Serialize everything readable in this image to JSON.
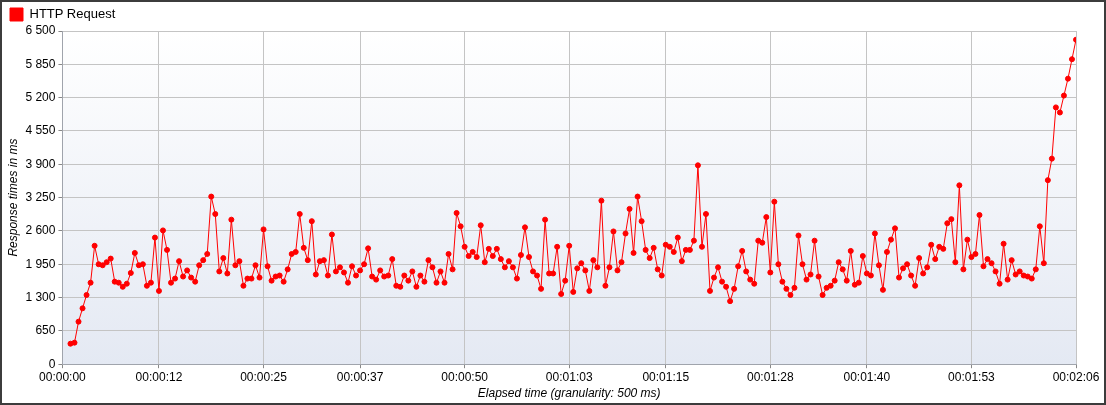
{
  "chart_data": {
    "type": "line",
    "xlabel": "Elapsed time (granularity: 500 ms)",
    "ylabel": "Response times in ms",
    "xlim": [
      0,
      126
    ],
    "xticks": [
      {
        "value": 0,
        "label": "00:00:00"
      },
      {
        "value": 12,
        "label": "00:00:12"
      },
      {
        "value": 25,
        "label": "00:00:25"
      },
      {
        "value": 37,
        "label": "00:00:37"
      },
      {
        "value": 50,
        "label": "00:00:50"
      },
      {
        "value": 63,
        "label": "00:01:03"
      },
      {
        "value": 75,
        "label": "00:01:15"
      },
      {
        "value": 88,
        "label": "00:01:28"
      },
      {
        "value": 100,
        "label": "00:01:40"
      },
      {
        "value": 113,
        "label": "00:01:53"
      },
      {
        "value": 126,
        "label": "00:02:06"
      }
    ],
    "ylim": [
      0,
      6500
    ],
    "yticks": [
      0,
      650,
      {
        "value": 1300,
        "label": "1 300"
      },
      {
        "value": 1950,
        "label": "1 950"
      },
      {
        "value": 2600,
        "label": "2 600"
      },
      {
        "value": 3250,
        "label": "3 250"
      },
      {
        "value": 3900,
        "label": "3 900"
      },
      {
        "value": 4550,
        "label": "4 550"
      },
      {
        "value": 5200,
        "label": "5 200"
      },
      {
        "value": 5850,
        "label": "5 850"
      },
      {
        "value": 6500,
        "label": "6 500"
      }
    ],
    "grid": true,
    "legend": "top left",
    "marker": "circle",
    "line_style": "solid",
    "x": [
      1,
      1.5,
      2,
      2.5,
      3,
      3.5,
      4,
      4.5,
      5,
      5.5,
      6,
      6.5,
      7,
      7.5,
      8,
      8.5,
      9,
      9.5,
      10,
      10.5,
      11,
      11.5,
      12,
      12.5,
      13,
      13.5,
      14,
      14.5,
      15,
      15.5,
      16,
      16.5,
      17,
      17.5,
      18,
      18.5,
      19,
      19.5,
      20,
      20.5,
      21,
      21.5,
      22,
      22.5,
      23,
      23.5,
      24,
      24.5,
      25,
      25.5,
      26,
      26.5,
      27,
      27.5,
      28,
      28.5,
      29,
      29.5,
      30,
      30.5,
      31,
      31.5,
      32,
      32.5,
      33,
      33.5,
      34,
      34.5,
      35,
      35.5,
      36,
      36.5,
      37,
      37.5,
      38,
      38.5,
      39,
      39.5,
      40,
      40.5,
      41,
      41.5,
      42,
      42.5,
      43,
      43.5,
      44,
      44.5,
      45,
      45.5,
      46,
      46.5,
      47,
      47.5,
      48,
      48.5,
      49,
      49.5,
      50,
      50.5,
      51,
      51.5,
      52,
      52.5,
      53,
      53.5,
      54,
      54.5,
      55,
      55.5,
      56,
      56.5,
      57,
      57.5,
      58,
      58.5,
      59,
      59.5,
      60,
      60.5,
      61,
      61.5,
      62,
      62.5,
      63,
      63.5,
      64,
      64.5,
      65,
      65.5,
      66,
      66.5,
      67,
      67.5,
      68,
      68.5,
      69,
      69.5,
      70,
      70.5,
      71,
      71.5,
      72,
      72.5,
      73,
      73.5,
      74,
      74.5,
      75,
      75.5,
      76,
      76.5,
      77,
      77.5,
      78,
      78.5,
      79,
      79.5,
      80,
      80.5,
      81,
      81.5,
      82,
      82.5,
      83,
      83.5,
      84,
      84.5,
      85,
      85.5,
      86,
      86.5,
      87,
      87.5,
      88,
      88.5,
      89,
      89.5,
      90,
      90.5,
      91,
      91.5,
      92,
      92.5,
      93,
      93.5,
      94,
      94.5,
      95,
      95.5,
      96,
      96.5,
      97,
      97.5,
      98,
      98.5,
      99,
      99.5,
      100,
      100.5,
      101,
      101.5,
      102,
      102.5,
      103,
      103.5,
      104,
      104.5,
      105,
      105.5,
      106,
      106.5,
      107,
      107.5,
      108,
      108.5,
      109,
      109.5,
      110,
      110.5,
      111,
      111.5,
      112,
      112.5,
      113,
      113.5,
      114,
      114.5,
      115,
      115.5,
      116,
      116.5,
      117,
      117.5,
      118,
      118.5,
      119,
      119.5,
      120,
      120.5,
      121,
      121.5,
      122,
      122.5,
      123,
      123.5,
      124,
      124.5,
      125,
      125.5,
      126
    ],
    "series": [
      {
        "name": "HTTP Request",
        "color": "#ff0000",
        "values": [
          400,
          420,
          830,
          1090,
          1350,
          1590,
          2310,
          1950,
          1930,
          1990,
          2060,
          1610,
          1590,
          1510,
          1570,
          1780,
          2170,
          1930,
          1950,
          1530,
          1590,
          2470,
          1430,
          2610,
          2230,
          1590,
          1670,
          2010,
          1710,
          1830,
          1690,
          1610,
          1930,
          2030,
          2150,
          3270,
          2930,
          1810,
          2070,
          1770,
          2820,
          1930,
          2010,
          1530,
          1670,
          1670,
          1930,
          1690,
          2630,
          1910,
          1630,
          1710,
          1730,
          1610,
          1850,
          2150,
          2190,
          2930,
          2270,
          2030,
          2790,
          1750,
          2010,
          2030,
          1730,
          2530,
          1810,
          1890,
          1790,
          1590,
          1910,
          1730,
          1830,
          1950,
          2260,
          1710,
          1650,
          1830,
          1710,
          1730,
          2050,
          1530,
          1510,
          1730,
          1630,
          1810,
          1510,
          1730,
          1610,
          2030,
          1890,
          1590,
          1810,
          1590,
          2150,
          1850,
          2950,
          2690,
          2290,
          2110,
          2190,
          2090,
          2710,
          1990,
          2250,
          2110,
          2250,
          2050,
          1890,
          2010,
          1890,
          1670,
          2130,
          2670,
          2090,
          1810,
          1730,
          1470,
          2820,
          1770,
          1770,
          2290,
          1370,
          1630,
          2310,
          1410,
          1870,
          1970,
          1830,
          1430,
          2030,
          1890,
          3190,
          1530,
          1890,
          2590,
          1830,
          1990,
          2550,
          3030,
          2170,
          3270,
          2790,
          2230,
          2070,
          2270,
          1850,
          1730,
          2330,
          2290,
          2190,
          2470,
          2010,
          2230,
          2230,
          2410,
          3880,
          2290,
          2930,
          1430,
          1690,
          1890,
          1610,
          1510,
          1230,
          1470,
          1910,
          2210,
          1810,
          1650,
          1570,
          2410,
          2370,
          2870,
          1790,
          3170,
          1950,
          1610,
          1470,
          1350,
          1490,
          2510,
          1950,
          1650,
          1750,
          2410,
          1710,
          1350,
          1490,
          1530,
          1630,
          1990,
          1850,
          1630,
          2210,
          1550,
          1590,
          2110,
          1770,
          1730,
          2550,
          1930,
          1450,
          2190,
          2430,
          2650,
          1690,
          1870,
          1950,
          1730,
          1530,
          2070,
          1770,
          1890,
          2330,
          2050,
          2290,
          2250,
          2750,
          2830,
          1990,
          3490,
          1850,
          2430,
          2090,
          2150,
          2910,
          1910,
          2050,
          1970,
          1810,
          1570,
          2350,
          1650,
          2030,
          1750,
          1810,
          1730,
          1710,
          1670,
          1850,
          2690,
          1970,
          3590,
          4010,
          5010,
          4910,
          5240,
          5570,
          5950,
          6330
        ]
      }
    ]
  }
}
